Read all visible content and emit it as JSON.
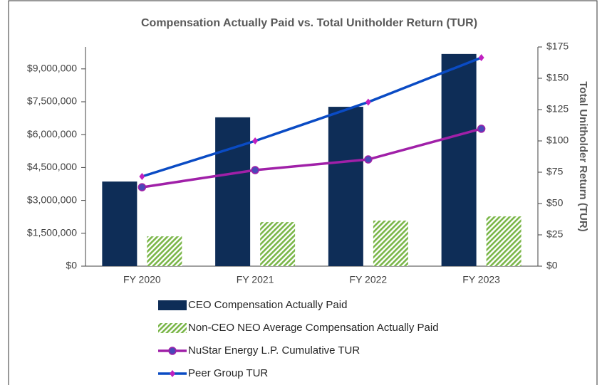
{
  "chart_data": {
    "type": "bar_line",
    "title": "Compensation Actually Paid vs. Total Unitholder Return (TUR)",
    "y2label": "Total Unitholder Return (TUR)",
    "categories": [
      "FY 2020",
      "FY 2021",
      "FY 2022",
      "FY 2023"
    ],
    "series": [
      {
        "name": "CEO Compensation Actually Paid",
        "kind": "bar",
        "color": "#0e2d57",
        "values": [
          3860000,
          6790000,
          7270000,
          9680000
        ]
      },
      {
        "name": "Non-CEO NEO Average Compensation Actually Paid",
        "kind": "bar",
        "pattern": "hatch",
        "color": "#7ab648",
        "values": [
          1360000,
          2010000,
          2080000,
          2270000
        ]
      },
      {
        "name": "NuStar Energy L.P. Cumulative TUR",
        "kind": "line",
        "axis": "y2",
        "color": "#a020a8",
        "marker": "circle",
        "marker_color": "#4a48b8",
        "values": [
          63,
          76.7,
          85.2,
          109.7
        ]
      },
      {
        "name": "Peer Group TUR",
        "kind": "line",
        "axis": "y2",
        "color": "#0a4bc4",
        "marker": "diamond",
        "marker_color": "#c020c0",
        "values": [
          71.6,
          100,
          131,
          166.5
        ]
      }
    ],
    "ylim": [
      0,
      10000000
    ],
    "yticks": [
      {
        "value": 0,
        "label": "$0"
      },
      {
        "value": 1500000,
        "label": "$1,500,000"
      },
      {
        "value": 3000000,
        "label": "$3,000,000"
      },
      {
        "value": 4500000,
        "label": "$4,500,000"
      },
      {
        "value": 6000000,
        "label": "$6,000,000"
      },
      {
        "value": 7500000,
        "label": "$7,500,000"
      },
      {
        "value": 9000000,
        "label": "$9,000,000"
      }
    ],
    "y2lim": [
      0,
      175
    ],
    "y2ticks": [
      {
        "value": 0,
        "label": "$0"
      },
      {
        "value": 25,
        "label": "$25"
      },
      {
        "value": 50,
        "label": "$50"
      },
      {
        "value": 75,
        "label": "$75"
      },
      {
        "value": 100,
        "label": "$100"
      },
      {
        "value": 125,
        "label": "$125"
      },
      {
        "value": 150,
        "label": "$150"
      },
      {
        "value": 175,
        "label": "$175"
      }
    ]
  }
}
